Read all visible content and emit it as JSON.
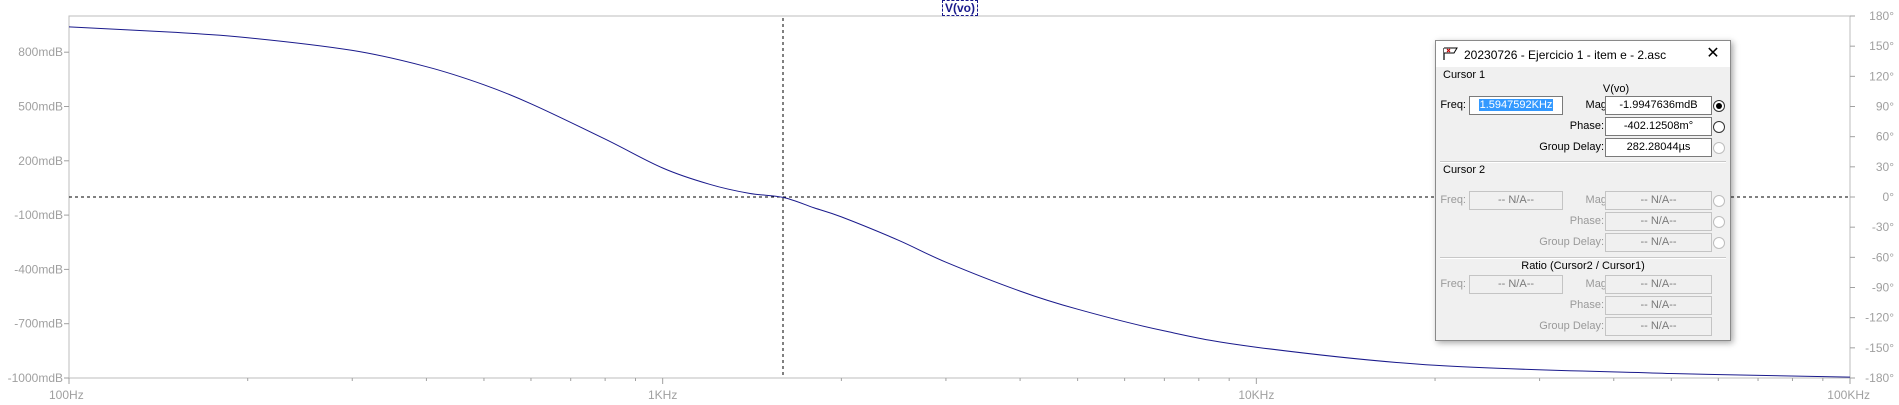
{
  "trace_label": "V(vo)",
  "left_axis_ticks": [
    "800mdB",
    "500mdB",
    "200mdB",
    "-100mdB",
    "-400mdB",
    "-700mdB",
    "-1000mdB"
  ],
  "right_axis_ticks": [
    "180°",
    "150°",
    "120°",
    "90°",
    "60°",
    "30°",
    "0°",
    "-30°",
    "-60°",
    "-90°",
    "-120°",
    "-150°",
    "-180°"
  ],
  "x_axis_ticks": [
    "100Hz",
    "1KHz",
    "10KHz",
    "100KHz"
  ],
  "colors": {
    "trace": "#1a1a8c",
    "grid": "#c0c0c0",
    "axis_text": "#a0a0a0",
    "selection": "#3399ff"
  },
  "chart_data": {
    "type": "line",
    "x_scale": "log",
    "xlim": [
      100,
      100000
    ],
    "ylim": [
      -1000,
      1000
    ],
    "y_unit": "mdB",
    "series": [
      {
        "name": "V(vo)",
        "x": [
          100,
          150,
          200,
          300,
          400,
          500,
          600,
          800,
          1000,
          1200,
          1400,
          1595,
          1800,
          2000,
          2500,
          3000,
          4000,
          5000,
          7000,
          10000,
          20000,
          50000,
          100000
        ],
        "y": [
          940,
          910,
          880,
          810,
          720,
          620,
          515,
          320,
          160,
          70,
          20,
          -2,
          -60,
          -110,
          -240,
          -360,
          -520,
          -620,
          -740,
          -830,
          -930,
          -975,
          -995
        ]
      }
    ],
    "cursor": {
      "x": 1594.7592,
      "y": -1.9947636
    }
  },
  "dialog": {
    "title": "20230726 - Ejercicio 1 - item e - 2.asc",
    "close_glyph": "✕",
    "cursor1": {
      "group_label": "Cursor 1",
      "trace": "V(vo)",
      "freq_label": "Freq:",
      "freq_value": "1.5947592KHz",
      "mag_label": "Mag:",
      "mag_value": "-1.9947636mdB",
      "phase_label": "Phase:",
      "phase_value": "-402.12508m°",
      "gd_label": "Group Delay:",
      "gd_value": "282.28044µs"
    },
    "cursor2": {
      "group_label": "Cursor 2",
      "freq_label": "Freq:",
      "freq_value": "-- N/A--",
      "mag_label": "Mag:",
      "mag_value": "-- N/A--",
      "phase_label": "Phase:",
      "phase_value": "-- N/A--",
      "gd_label": "Group Delay:",
      "gd_value": "-- N/A--"
    },
    "ratio": {
      "group_label": "Ratio (Cursor2 / Cursor1)",
      "freq_label": "Freq:",
      "freq_value": "-- N/A--",
      "mag_label": "Mag:",
      "mag_value": "-- N/A--",
      "phase_label": "Phase:",
      "phase_value": "-- N/A--",
      "gd_label": "Group Delay:",
      "gd_value": "-- N/A--"
    }
  }
}
